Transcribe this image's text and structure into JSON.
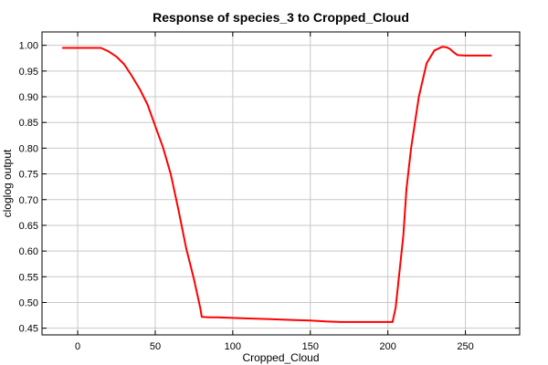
{
  "chart_data": {
    "type": "line",
    "title": "Response of species_3 to Cropped_Cloud",
    "xlabel": "Cropped_Cloud",
    "ylabel": "cloglog output",
    "xlim": [
      -23,
      285
    ],
    "ylim": [
      0.437,
      1.026
    ],
    "x_ticks": [
      0,
      50,
      100,
      150,
      200,
      250
    ],
    "x_tick_labels": [
      "0",
      "50",
      "100",
      "150",
      "200",
      "250"
    ],
    "y_ticks": [
      0.45,
      0.5,
      0.55,
      0.6,
      0.65,
      0.7,
      0.75,
      0.8,
      0.85,
      0.9,
      0.95,
      1.0
    ],
    "y_tick_labels": [
      "0.45",
      "0.50",
      "0.55",
      "0.60",
      "0.65",
      "0.70",
      "0.75",
      "0.80",
      "0.85",
      "0.90",
      "0.95",
      "1.00"
    ],
    "grid": true,
    "line_color": "#ff0000",
    "series": [
      {
        "x": [
          -10,
          0,
          10,
          15,
          20,
          25,
          30,
          35,
          40,
          45,
          50,
          55,
          60,
          65,
          70,
          75,
          79,
          80,
          85,
          90,
          100,
          110,
          120,
          130,
          140,
          150,
          160,
          170,
          180,
          190,
          200,
          203,
          205,
          210,
          212,
          215,
          220,
          225,
          230,
          235,
          238,
          240,
          243,
          245,
          250,
          260,
          267
        ],
        "y": [
          0.995,
          0.995,
          0.995,
          0.995,
          0.988,
          0.978,
          0.963,
          0.94,
          0.915,
          0.885,
          0.843,
          0.802,
          0.75,
          0.68,
          0.605,
          0.545,
          0.49,
          0.472,
          0.471,
          0.471,
          0.47,
          0.469,
          0.468,
          0.467,
          0.466,
          0.465,
          0.463,
          0.462,
          0.462,
          0.462,
          0.462,
          0.462,
          0.49,
          0.63,
          0.72,
          0.8,
          0.9,
          0.965,
          0.99,
          0.997,
          0.996,
          0.993,
          0.985,
          0.981,
          0.98,
          0.98,
          0.98
        ]
      }
    ]
  }
}
